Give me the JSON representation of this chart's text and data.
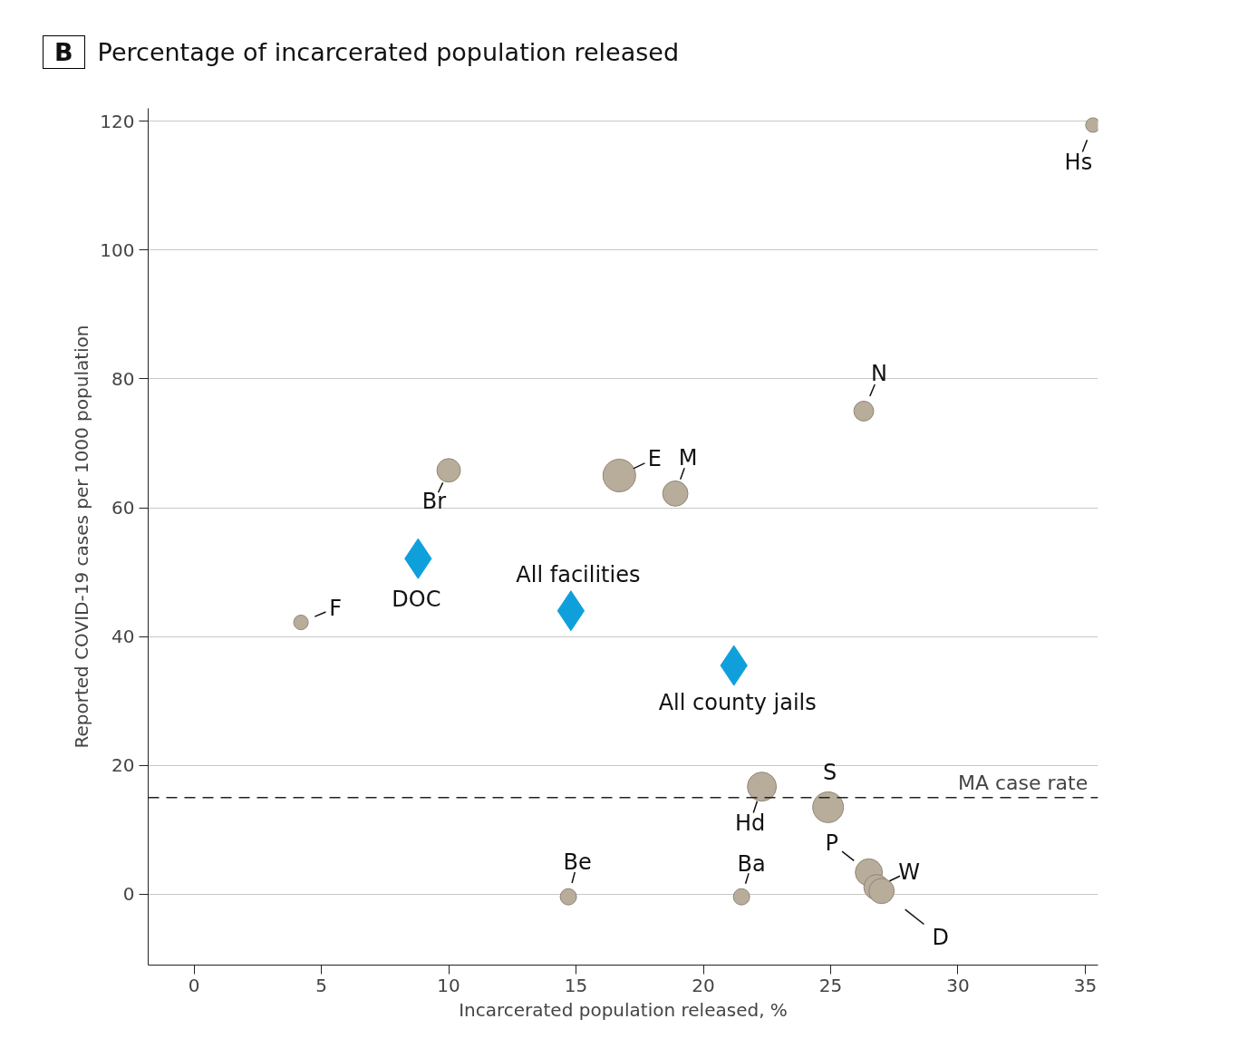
{
  "chart_data": {
    "type": "bubble",
    "title": "Percentage of incarcerated population released",
    "xlabel": "Incarcerated population released, %",
    "ylabel": "Reported COVID-19 cases per 1000 population",
    "xlim": [
      -1.8,
      35.5
    ],
    "ylim": [
      -11,
      122
    ],
    "xticks": [
      0,
      5,
      10,
      15,
      20,
      25,
      30,
      35
    ],
    "yticks": [
      0,
      20,
      40,
      60,
      80,
      100,
      120
    ],
    "grid": "y",
    "series": [
      {
        "color": "#b8ad9b",
        "x": [
          35.3,
          26.3,
          10.0,
          16.7,
          18.9,
          4.2,
          22.3,
          24.9,
          26.5,
          26.8,
          27.0,
          14.7,
          21.5
        ],
        "values": [
          119.4,
          75.0,
          65.8,
          65.0,
          62.2,
          42.2,
          16.7,
          13.5,
          3.4,
          1.1,
          0.5,
          -0.4,
          -0.4
        ],
        "sizes": [
          0.2,
          0.37,
          0.52,
          1,
          0.6,
          0.2,
          0.79,
          0.89,
          0.69,
          0.6,
          0.6,
          0.25,
          0.25
        ]
      },
      {
        "type": "scatter",
        "marker": "diamond",
        "color": "#0fa0dc",
        "x": [
          8.8,
          14.8,
          21.2
        ],
        "values": [
          52.1,
          44.0,
          35.5
        ]
      }
    ],
    "ref_lines": [
      {
        "axis": "y",
        "value": 15,
        "label": "MA case rate",
        "line_style": "dashed",
        "color": "#222222"
      }
    ],
    "annotations": [
      "B",
      {
        "text": "Hs",
        "x": 35.3,
        "y": 119.4
      },
      {
        "text": "N",
        "x": 26.3,
        "y": 75.0
      },
      {
        "text": "Br",
        "x": 10.0,
        "y": 65.8
      },
      {
        "text": "E",
        "x": 16.7,
        "y": 65.0
      },
      {
        "text": "M",
        "x": 18.9,
        "y": 62.2
      },
      {
        "text": "F",
        "x": 4.2,
        "y": 42.2
      },
      {
        "text": "Hd",
        "x": 22.3,
        "y": 16.7
      },
      {
        "text": "S",
        "x": 24.9,
        "y": 13.5
      },
      {
        "text": "P",
        "x": 26.5,
        "y": 3.4
      },
      {
        "text": "W",
        "x": 26.8,
        "y": 1.1
      },
      {
        "text": "D",
        "x": 27.0,
        "y": 0.5
      },
      {
        "text": "Be",
        "x": 14.7,
        "y": -0.4
      },
      {
        "text": "Ba",
        "x": 21.5,
        "y": -0.4
      },
      {
        "text": "DOC",
        "x": 8.8,
        "y": 52.1
      },
      {
        "text": "All facilities",
        "x": 14.8,
        "y": 44.0
      },
      {
        "text": "All county jails",
        "x": 21.2,
        "y": 35.5
      }
    ]
  }
}
